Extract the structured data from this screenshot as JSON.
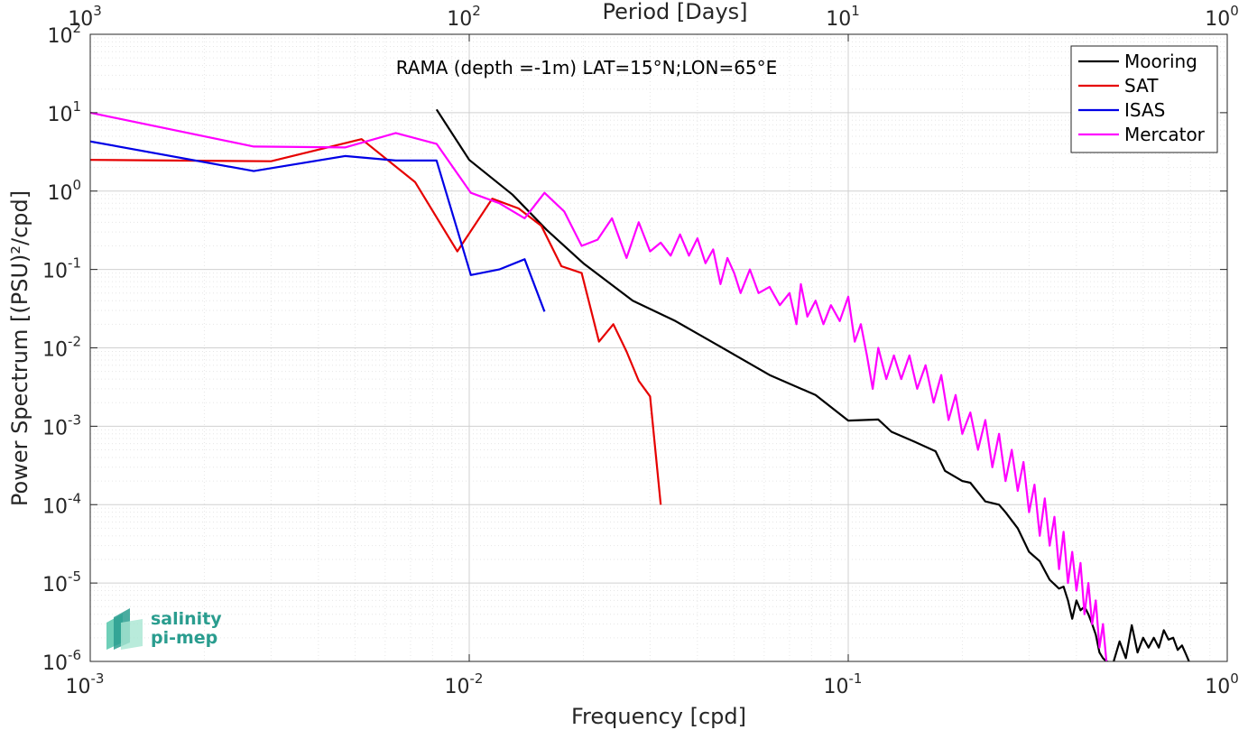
{
  "chart_data": {
    "type": "line",
    "title": "RAMA (depth =-1m) LAT=15°N;LON=65°E",
    "xlabel": "Frequency [cpd]",
    "ylabel": "Power Spectrum [(PSU)²/cpd]",
    "x2label": "Period [Days]",
    "xscale": "log",
    "yscale": "log",
    "xlim": [
      0.001,
      1
    ],
    "ylim": [
      1e-06,
      100
    ],
    "x_ticks": [
      {
        "base": "10",
        "exp": "-3"
      },
      {
        "base": "10",
        "exp": "-2"
      },
      {
        "base": "10",
        "exp": "-1"
      },
      {
        "base": "10",
        "exp": "0"
      }
    ],
    "x2_ticks": [
      {
        "base": "10",
        "exp": "3"
      },
      {
        "base": "10",
        "exp": "2"
      },
      {
        "base": "10",
        "exp": "1"
      },
      {
        "base": "10",
        "exp": "0"
      }
    ],
    "y_ticks": [
      {
        "base": "10",
        "exp": "-6"
      },
      {
        "base": "10",
        "exp": "-5"
      },
      {
        "base": "10",
        "exp": "-4"
      },
      {
        "base": "10",
        "exp": "-3"
      },
      {
        "base": "10",
        "exp": "-2"
      },
      {
        "base": "10",
        "exp": "-1"
      },
      {
        "base": "10",
        "exp": "0"
      },
      {
        "base": "10",
        "exp": "1"
      },
      {
        "base": "10",
        "exp": "2"
      }
    ],
    "grid": true,
    "legend_position": "top-right",
    "series": [
      {
        "name": "Mooring",
        "color": "#000000",
        "x": [
          0.0082,
          0.01,
          0.013,
          0.016,
          0.02,
          0.027,
          0.035,
          0.045,
          0.062,
          0.082,
          0.1,
          0.12,
          0.13,
          0.15,
          0.17,
          0.18,
          0.2,
          0.21,
          0.23,
          0.25,
          0.26,
          0.28,
          0.3,
          0.32,
          0.34,
          0.36,
          0.37,
          0.38,
          0.39,
          0.4,
          0.41,
          0.42,
          0.43,
          0.44,
          0.45,
          0.46,
          0.47,
          0.48,
          0.5,
          0.52,
          0.54,
          0.56,
          0.58,
          0.6,
          0.62,
          0.64,
          0.66,
          0.68,
          0.7,
          0.72,
          0.74,
          0.76,
          0.78,
          0.8
        ],
        "y": [
          11,
          2.5,
          0.9,
          0.32,
          0.12,
          0.04,
          0.022,
          0.011,
          0.0045,
          0.0025,
          0.00118,
          0.00122,
          0.00085,
          0.00063,
          0.00048,
          0.00027,
          0.0002,
          0.00019,
          0.00011,
          0.0001,
          8e-05,
          5e-05,
          2.5e-05,
          1.9e-05,
          1.1e-05,
          8.5e-06,
          9e-06,
          6e-06,
          3.5e-06,
          6e-06,
          4.5e-06,
          5e-06,
          4e-06,
          3e-06,
          2.2e-06,
          1.3e-06,
          1.1e-06,
          1e-06,
          9.5e-07,
          1.8e-06,
          1.1e-06,
          2.9e-06,
          1.3e-06,
          2e-06,
          1.5e-06,
          2e-06,
          1.5e-06,
          2.5e-06,
          1.9e-06,
          2e-06,
          1.4e-06,
          1.6e-06,
          1.2e-06,
          9e-07
        ]
      },
      {
        "name": "SAT",
        "color": "#e60000",
        "x": [
          0.001,
          0.003,
          0.0052,
          0.0072,
          0.0093,
          0.0115,
          0.0135,
          0.0155,
          0.0175,
          0.0198,
          0.022,
          0.024,
          0.026,
          0.028,
          0.03,
          0.032
        ],
        "y": [
          2.5,
          2.4,
          4.6,
          1.3,
          0.17,
          0.8,
          0.6,
          0.36,
          0.11,
          0.09,
          0.012,
          0.02,
          0.009,
          0.0038,
          0.0024,
          0.0001
        ]
      },
      {
        "name": "ISAS",
        "color": "#0000e6",
        "x": [
          0.001,
          0.0027,
          0.0047,
          0.0064,
          0.0082,
          0.0101,
          0.012,
          0.014,
          0.0158
        ],
        "y": [
          4.3,
          1.8,
          2.8,
          2.45,
          2.45,
          0.085,
          0.1,
          0.135,
          0.029
        ]
      },
      {
        "name": "Mercator",
        "color": "#ff00ff",
        "x": [
          0.001,
          0.0027,
          0.0047,
          0.0064,
          0.0082,
          0.0101,
          0.012,
          0.014,
          0.0158,
          0.0178,
          0.0198,
          0.0218,
          0.0238,
          0.026,
          0.028,
          0.03,
          0.032,
          0.034,
          0.036,
          0.038,
          0.04,
          0.042,
          0.044,
          0.046,
          0.048,
          0.05,
          0.052,
          0.055,
          0.058,
          0.062,
          0.066,
          0.07,
          0.073,
          0.075,
          0.078,
          0.082,
          0.086,
          0.09,
          0.095,
          0.1,
          0.104,
          0.108,
          0.112,
          0.116,
          0.12,
          0.126,
          0.132,
          0.138,
          0.145,
          0.152,
          0.16,
          0.168,
          0.176,
          0.184,
          0.192,
          0.2,
          0.21,
          0.22,
          0.23,
          0.24,
          0.25,
          0.26,
          0.27,
          0.28,
          0.29,
          0.3,
          0.31,
          0.32,
          0.33,
          0.34,
          0.35,
          0.36,
          0.37,
          0.38,
          0.39,
          0.4,
          0.41,
          0.42,
          0.43,
          0.44,
          0.45,
          0.46,
          0.47,
          0.48,
          0.49
        ],
        "y": [
          10,
          3.7,
          3.6,
          5.5,
          4,
          0.95,
          0.7,
          0.45,
          0.95,
          0.55,
          0.2,
          0.24,
          0.45,
          0.14,
          0.4,
          0.17,
          0.22,
          0.15,
          0.28,
          0.15,
          0.25,
          0.12,
          0.18,
          0.065,
          0.14,
          0.09,
          0.05,
          0.1,
          0.05,
          0.06,
          0.035,
          0.05,
          0.02,
          0.065,
          0.025,
          0.04,
          0.02,
          0.035,
          0.022,
          0.045,
          0.012,
          0.02,
          0.008,
          0.003,
          0.01,
          0.004,
          0.008,
          0.004,
          0.008,
          0.003,
          0.006,
          0.002,
          0.0045,
          0.0012,
          0.0025,
          0.0008,
          0.0015,
          0.0005,
          0.0012,
          0.0003,
          0.0008,
          0.0002,
          0.0005,
          0.00015,
          0.00035,
          8e-05,
          0.00018,
          4e-05,
          0.00012,
          3e-05,
          7e-05,
          1.5e-05,
          4.5e-05,
          1e-05,
          2.5e-05,
          8e-06,
          1.8e-05,
          4e-06,
          1e-05,
          3e-06,
          6e-06,
          1.5e-06,
          3e-06,
          1e-06,
          9e-07
        ]
      }
    ]
  },
  "logo": {
    "line1": "salinity",
    "line2": "pi-mep"
  }
}
